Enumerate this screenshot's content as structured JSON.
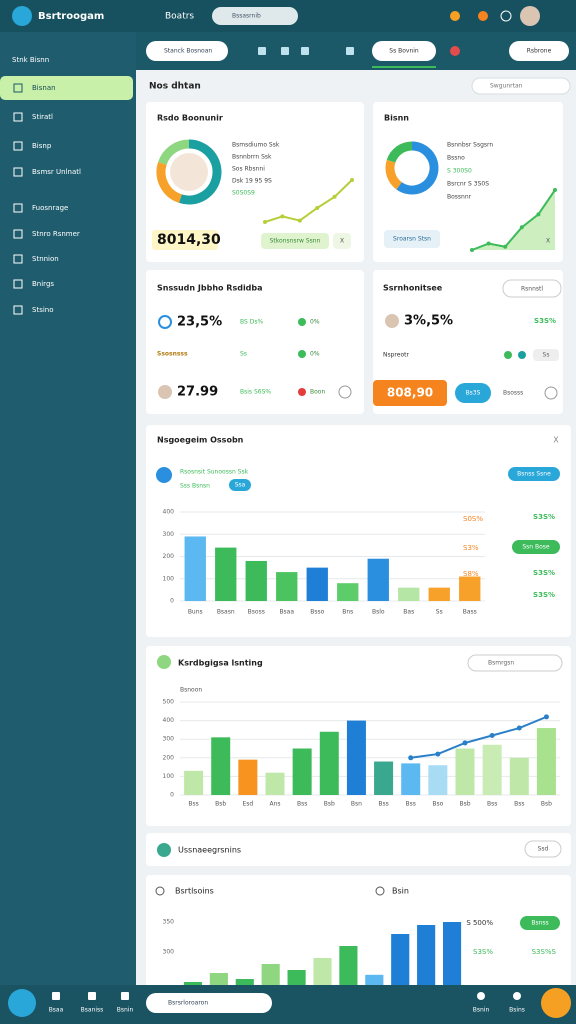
{
  "brand": "Bsrtroogam",
  "topbar": {
    "title": "Boatrs",
    "search": "Bssasrnib"
  },
  "sidebar": {
    "heading": "Stnk Bisnn",
    "items": [
      "Bisnan",
      "Stiratl",
      "Bisnp",
      "Bsmsr Unlnatl",
      "Fuosnrage",
      "Stnro Rsnmer",
      "Stnnion",
      "Bnirgs",
      "Stsino"
    ]
  },
  "toolbar": {
    "search": "Stanck Bosnoan",
    "tab": "Ss Bovnin",
    "button": "Rsbrone"
  },
  "section": {
    "title": "Nos dhtan",
    "search": "Swgunrtan"
  },
  "cards": [
    {
      "title": "Rsdo Boonunir",
      "lines": [
        "Bsmsdiumo Ssk",
        "Bsnnbrrn Ssk",
        "Sos Rbsnni",
        "Dsk 19 95 9S",
        "S0S0S9"
      ],
      "value": "8014,30",
      "pill": "Stkonsnsrw Ssnn",
      "close": "X",
      "donut": [
        55,
        25,
        20
      ],
      "trend": [
        10,
        14,
        11,
        20,
        28,
        40
      ]
    },
    {
      "title": "Bisnn",
      "lines": [
        "Bsnnbsr Ssgsrn",
        "Bssno",
        "S 300S0",
        "Bsrcnr S 3S0S",
        "Bossnnr"
      ],
      "pill": "Sroarsn Stsn",
      "close": "X",
      "donut": [
        60,
        20,
        20
      ],
      "trend": [
        8,
        12,
        10,
        22,
        30,
        45
      ]
    }
  ],
  "stats_left": {
    "title": "Snssudn Jbbho Rsdidba",
    "rows": [
      {
        "value": "23,5%",
        "note": "BS Ds%",
        "tag": "0%"
      },
      {
        "value": "Ssosnsss",
        "note": "Ss",
        "tag": "0%"
      },
      {
        "value": "27.99",
        "note": "Bsis S6S%",
        "tag": "Boon"
      }
    ]
  },
  "stats_right": {
    "title": "Ssrnhonitsee",
    "button": "Rsnnstl",
    "rows": [
      {
        "value": "3%,5%",
        "tag": "S3S%"
      },
      {
        "value": "Nspreotr",
        "tag": "Ss"
      },
      {
        "value": "808,90",
        "tag": "Bs3S",
        "note": "Bsosss"
      }
    ]
  },
  "chart_panel": {
    "title": "Nsgoegeim Ossobn",
    "close": "X",
    "legend": [
      "Rsosnsit Sunoossn Ssk",
      "Sss Bsnsn",
      "Ssa"
    ],
    "button": "Bsnss Ssne",
    "side_left": [
      "S0S%",
      "S3%",
      "S8%"
    ],
    "side_right": [
      "S3S%",
      "S3S%",
      "S3S%"
    ],
    "side_pill": "Ssn Bose",
    "chart": {
      "type": "bar",
      "categories": [
        "Buns",
        "Bsasn",
        "Bsoss",
        "Bsaa",
        "Bsso",
        "Bns",
        "Bslo",
        "Bas",
        "Ss",
        "Bass"
      ],
      "values": [
        290,
        240,
        180,
        130,
        150,
        80,
        190,
        60,
        60,
        110
      ],
      "colors": [
        "#5bb8f0",
        "#3dbb5a",
        "#3dbb5a",
        "#4cc361",
        "#1f7fd6",
        "#5dcc6a",
        "#2a8fde",
        "#b6e6a6",
        "#f7a12b",
        "#f7a12b"
      ],
      "ylim": [
        0,
        400
      ],
      "yticks": [
        0,
        100,
        200,
        300,
        400
      ],
      "grid": true
    }
  },
  "chart_panel2": {
    "title": "Ksrdbgigsa lsnting",
    "search": "Bsmrgsn",
    "legend": "Bsnoon",
    "chart": {
      "type": "bar",
      "categories": [
        "Bss",
        "Bsb",
        "Esd",
        "Ans",
        "Bss",
        "Bsb",
        "Bsn",
        "Bss",
        "Bss",
        "Bso",
        "Bsb",
        "Bss",
        "Bss",
        "Bsb"
      ],
      "values": [
        130,
        310,
        190,
        120,
        250,
        340,
        400,
        180,
        170,
        160,
        250,
        270,
        200,
        360
      ],
      "colors": [
        "#bfe8a8",
        "#3dbb5a",
        "#f7931e",
        "#bfe8a8",
        "#3dbb5a",
        "#3dbb5a",
        "#1f7fd6",
        "#3aa88f",
        "#5bb8f0",
        "#a8dcf5",
        "#bfe8a8",
        "#c8ecb4",
        "#bfe8a8",
        "#a8e28e"
      ],
      "line": [
        null,
        null,
        null,
        null,
        null,
        null,
        null,
        null,
        200,
        220,
        280,
        320,
        360,
        420
      ],
      "line_color": "#2a7fc9",
      "ylim": [
        0,
        500
      ],
      "yticks": [
        0,
        100,
        200,
        300,
        400,
        500
      ],
      "grid": true
    }
  },
  "summary": {
    "title": "Ussnaeegrsnins",
    "button": "Ssd"
  },
  "bottom_panel": {
    "title": "Bsrtlsoins",
    "subtitle": "Bsin",
    "stat_top": "S 500%",
    "pill": "Bsnss",
    "stat_mid": "S3S%",
    "stat_right": "S3S%S",
    "chart": {
      "type": "bar",
      "values": [
        250,
        265,
        255,
        280,
        270,
        290,
        310,
        262,
        330,
        345,
        350
      ],
      "colors": [
        "#3dbb5a",
        "#8fd680",
        "#3dbb5a",
        "#8fd680",
        "#3dbb5a",
        "#bfe8a8",
        "#3dbb5a",
        "#5bb8f0",
        "#1f7fd6",
        "#1f7fd6",
        "#1f7fd6"
      ],
      "ylim": [
        200,
        400
      ],
      "yticks": [
        300,
        350
      ]
    }
  },
  "bottombar": {
    "labels": [
      "Bsaa",
      "Bsaniss",
      "Bsnin"
    ],
    "search": "Bsrsrloroaron",
    "right": [
      "Bsnin",
      "Bsins"
    ]
  }
}
